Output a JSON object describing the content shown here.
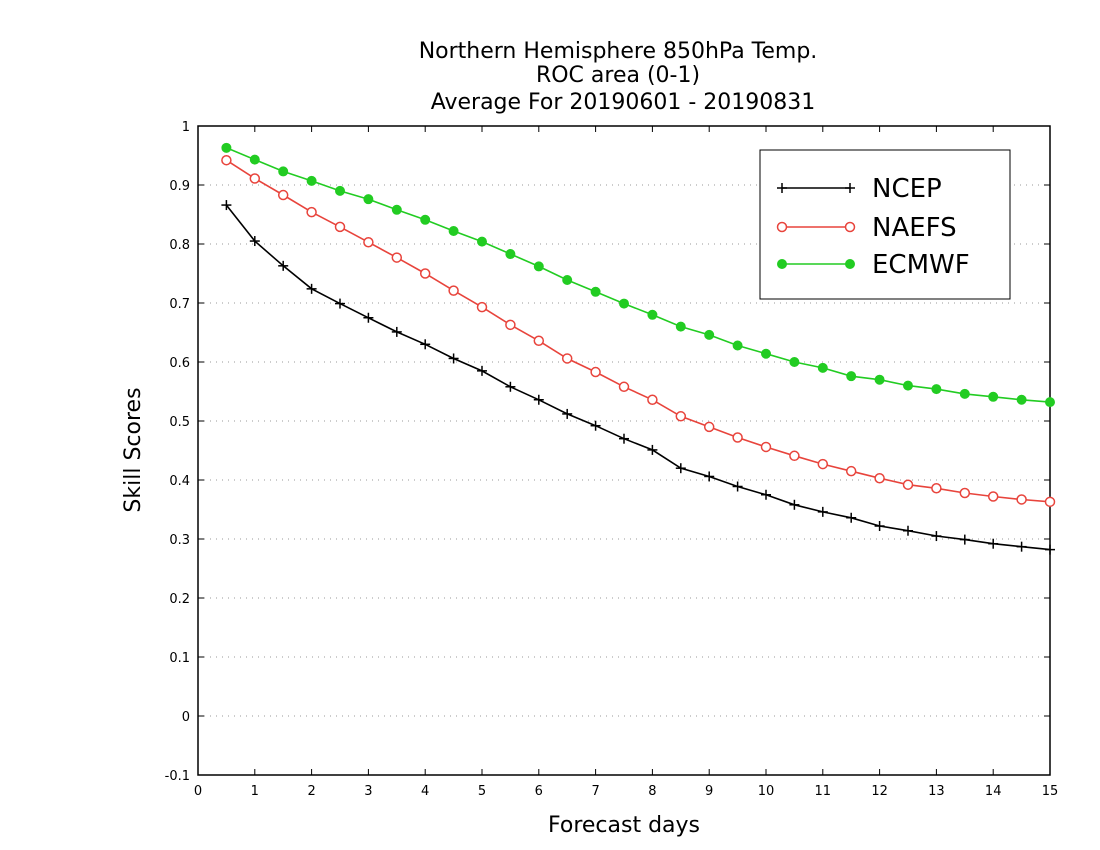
{
  "chart_data": {
    "type": "line",
    "title": [
      "Northern Hemisphere 850hPa Temp.",
      "ROC area (0-1)",
      "Average For 20190601 - 20190831"
    ],
    "xlabel": "Forecast days",
    "ylabel": "Skill Scores",
    "xlim": [
      0,
      15
    ],
    "ylim": [
      -0.1,
      1
    ],
    "xticks": [
      0,
      1,
      2,
      3,
      4,
      5,
      6,
      7,
      8,
      9,
      10,
      11,
      12,
      13,
      14,
      15
    ],
    "yticks": [
      -0.1,
      0,
      0.1,
      0.2,
      0.3,
      0.4,
      0.5,
      0.6,
      0.7,
      0.8,
      0.9,
      1
    ],
    "ytick_labels": [
      "-0.1",
      "0",
      "0.1",
      "0.2",
      "0.3",
      "0.4",
      "0.5",
      "0.6",
      "0.7",
      "0.8",
      "0.9",
      "1"
    ],
    "grid": "horizontal dotted",
    "legend_position": "top-right",
    "x": [
      0.5,
      1,
      1.5,
      2,
      2.5,
      3,
      3.5,
      4,
      4.5,
      5,
      5.5,
      6,
      6.5,
      7,
      7.5,
      8,
      8.5,
      9,
      9.5,
      10,
      10.5,
      11,
      11.5,
      12,
      12.5,
      13,
      13.5,
      14,
      14.5,
      15
    ],
    "series": [
      {
        "name": "NCEP",
        "color": "#000000",
        "marker": "plus",
        "values": [
          0.866,
          0.805,
          0.763,
          0.724,
          0.699,
          0.675,
          0.651,
          0.63,
          0.606,
          0.585,
          0.558,
          0.536,
          0.512,
          0.492,
          0.47,
          0.451,
          0.42,
          0.406,
          0.389,
          0.375,
          0.358,
          0.346,
          0.336,
          0.322,
          0.314,
          0.305,
          0.299,
          0.292,
          0.287,
          0.282
        ]
      },
      {
        "name": "NAEFS",
        "color": "#e8443c",
        "marker": "open-circle",
        "values": [
          0.942,
          0.911,
          0.883,
          0.854,
          0.829,
          0.803,
          0.777,
          0.75,
          0.721,
          0.693,
          0.663,
          0.636,
          0.606,
          0.583,
          0.558,
          0.536,
          0.508,
          0.49,
          0.472,
          0.456,
          0.441,
          0.427,
          0.415,
          0.403,
          0.392,
          0.386,
          0.378,
          0.372,
          0.367,
          0.363
        ]
      },
      {
        "name": "ECMWF",
        "color": "#22cc22",
        "marker": "filled-circle",
        "values": [
          0.963,
          0.943,
          0.923,
          0.907,
          0.89,
          0.876,
          0.858,
          0.841,
          0.822,
          0.804,
          0.783,
          0.762,
          0.739,
          0.719,
          0.699,
          0.68,
          0.66,
          0.646,
          0.628,
          0.614,
          0.6,
          0.59,
          0.576,
          0.57,
          0.56,
          0.554,
          0.546,
          0.541,
          0.536,
          0.532
        ]
      }
    ]
  }
}
